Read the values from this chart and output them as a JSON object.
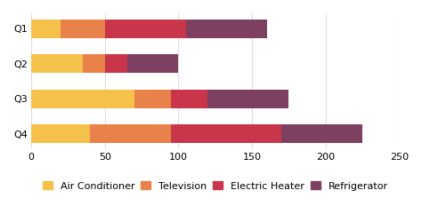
{
  "categories": [
    "Q1",
    "Q2",
    "Q3",
    "Q4"
  ],
  "series": {
    "Air Conditioner": [
      20,
      35,
      70,
      40
    ],
    "Television": [
      30,
      15,
      25,
      55
    ],
    "Electric Heater": [
      55,
      15,
      25,
      75
    ],
    "Refrigerator": [
      55,
      35,
      55,
      55
    ]
  },
  "colors": {
    "Air Conditioner": "#F5C14A",
    "Television": "#E8824A",
    "Electric Heater": "#C9354A",
    "Refrigerator": "#7D4060"
  },
  "xlim": [
    0,
    250
  ],
  "xticks": [
    0,
    50,
    100,
    150,
    200,
    250
  ],
  "bar_height": 0.52,
  "background_color": "#FFFFFF",
  "grid_color": "#DDDDDD",
  "tick_fontsize": 8,
  "legend_fontsize": 8
}
